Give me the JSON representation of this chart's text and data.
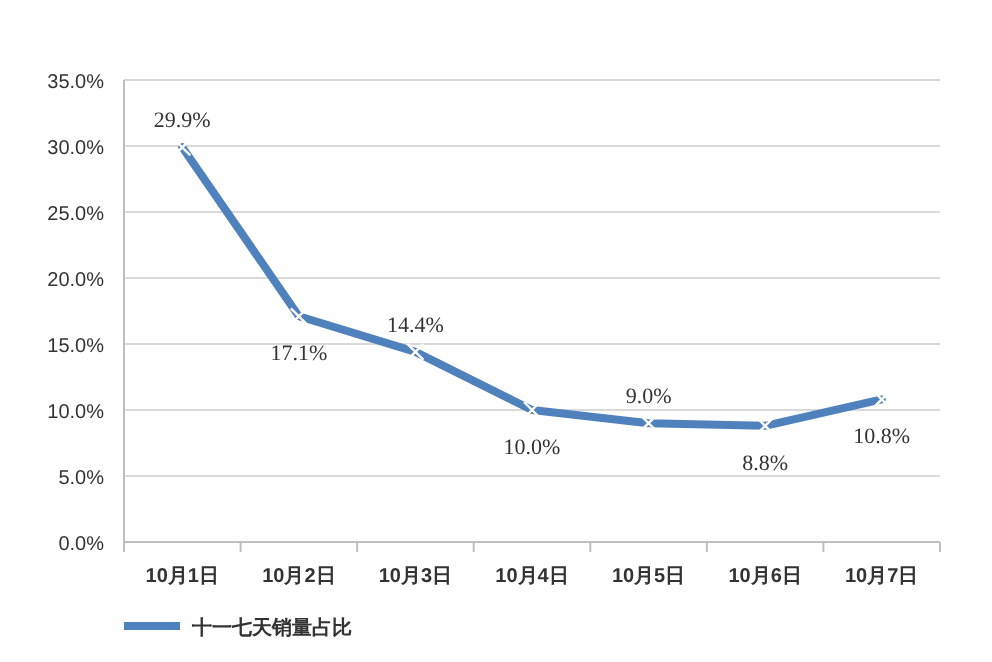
{
  "chart_data": {
    "type": "line",
    "categories": [
      "10月1日",
      "10月2日",
      "10月3日",
      "10月4日",
      "10月5日",
      "10月6日",
      "10月7日"
    ],
    "series": [
      {
        "name": "十一七天销量占比",
        "color": "#4f81bd",
        "values": [
          29.9,
          17.1,
          14.4,
          10.0,
          9.0,
          8.8,
          10.8
        ],
        "value_labels": [
          "29.9%",
          "17.1%",
          "14.4%",
          "10.0%",
          "9.0%",
          "8.8%",
          "10.8%"
        ]
      }
    ],
    "ylim": [
      0,
      35
    ],
    "yticks": [
      {
        "value": 0,
        "label": "0.0%"
      },
      {
        "value": 5,
        "label": "5.0%"
      },
      {
        "value": 10,
        "label": "10.0%"
      },
      {
        "value": 15,
        "label": "15.0%"
      },
      {
        "value": 20,
        "label": "20.0%"
      },
      {
        "value": 25,
        "label": "25.0%"
      },
      {
        "value": 30,
        "label": "30.0%"
      },
      {
        "value": 35,
        "label": "35.0%"
      }
    ],
    "grid": "y",
    "legend": "bottom left",
    "marker": "cross",
    "line_style": "solid"
  }
}
